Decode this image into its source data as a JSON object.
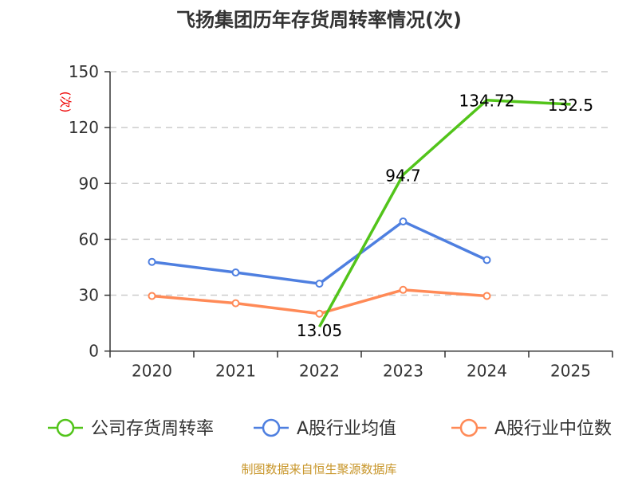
{
  "chart_data": {
    "type": "line",
    "title": "飞扬集团历年存货周转率情况(次)",
    "ylabel": "(次)",
    "xlabel": "",
    "categories": [
      "2020",
      "2021",
      "2022",
      "2023",
      "2024",
      "2025"
    ],
    "ylim": [
      0,
      150
    ],
    "yticks": [
      0,
      30,
      60,
      90,
      120,
      150
    ],
    "grid": true,
    "legend_position": "bottom",
    "series": [
      {
        "name": "公司存货周转率",
        "color": "#52c41a",
        "values": [
          null,
          null,
          13.05,
          94.7,
          134.72,
          132.5
        ],
        "labels": [
          "",
          "",
          "13.05",
          "94.7",
          "134.72",
          "132.5"
        ]
      },
      {
        "name": "A股行业均值",
        "color": "#4e7fe0",
        "values": [
          47.9,
          42.2,
          36.2,
          69.6,
          48.9,
          null
        ]
      },
      {
        "name": "A股行业中位数",
        "color": "#ff8a57",
        "values": [
          29.6,
          25.7,
          20.1,
          32.9,
          29.6,
          null
        ]
      }
    ]
  },
  "source": "制图数据来自恒生聚源数据库"
}
